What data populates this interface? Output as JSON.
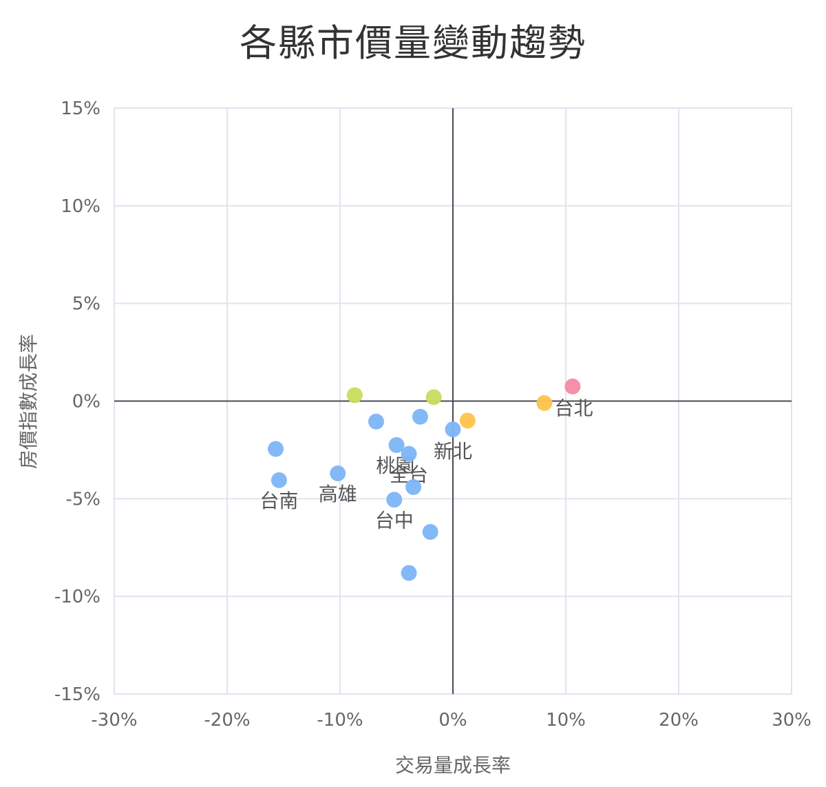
{
  "chart_data": {
    "type": "scatter",
    "title": "各縣市價量變動趨勢",
    "xlabel": "交易量成長率",
    "ylabel": "房價指數成長率",
    "xlim": [
      -30,
      30
    ],
    "ylim": [
      -15,
      15
    ],
    "x_ticks": [
      -30,
      -20,
      -10,
      0,
      10,
      20,
      30
    ],
    "y_ticks": [
      15,
      10,
      5,
      0,
      -5,
      -10,
      -15
    ],
    "x_tick_labels": [
      "-30%",
      "-20%",
      "-10%",
      "0%",
      "10%",
      "20%",
      "30%"
    ],
    "y_tick_labels": [
      "15%",
      "10%",
      "5%",
      "0%",
      "-5%",
      "-10%",
      "-15%"
    ],
    "grid": true,
    "points": [
      {
        "x": 10.6,
        "y": 0.75,
        "color": "#f48aa3"
      },
      {
        "x": 8.1,
        "y": -0.1,
        "color": "#ffc34d"
      },
      {
        "x": 1.3,
        "y": -1.0,
        "color": "#ffc34d"
      },
      {
        "x": -8.7,
        "y": 0.3,
        "color": "#c9dc5e"
      },
      {
        "x": -1.7,
        "y": 0.2,
        "color": "#c9dc5e"
      },
      {
        "x": -6.8,
        "y": -1.05,
        "color": "#7db5f7"
      },
      {
        "x": -2.9,
        "y": -0.8,
        "color": "#7db5f7"
      },
      {
        "x": 0.0,
        "y": -1.45,
        "color": "#7db5f7"
      },
      {
        "x": -5.0,
        "y": -2.25,
        "color": "#7db5f7"
      },
      {
        "x": -3.9,
        "y": -2.7,
        "color": "#7db5f7"
      },
      {
        "x": -15.7,
        "y": -2.45,
        "color": "#7db5f7"
      },
      {
        "x": -15.4,
        "y": -4.05,
        "color": "#7db5f7"
      },
      {
        "x": -10.2,
        "y": -3.7,
        "color": "#7db5f7"
      },
      {
        "x": -3.5,
        "y": -4.4,
        "color": "#7db5f7"
      },
      {
        "x": -5.2,
        "y": -5.05,
        "color": "#7db5f7"
      },
      {
        "x": -2.0,
        "y": -6.7,
        "color": "#7db5f7"
      },
      {
        "x": -3.9,
        "y": -8.8,
        "color": "#7db5f7"
      }
    ],
    "annotations": [
      {
        "text": "台北",
        "x": 10.7,
        "y": -0.7
      },
      {
        "text": "新北",
        "x": 0.0,
        "y": -2.9
      },
      {
        "text": "桃園",
        "x": -5.1,
        "y": -3.65
      },
      {
        "text": "全台",
        "x": -3.9,
        "y": -4.1
      },
      {
        "text": "台南",
        "x": -15.4,
        "y": -5.45
      },
      {
        "text": "高雄",
        "x": -10.2,
        "y": -5.1
      },
      {
        "text": "台中",
        "x": -5.2,
        "y": -6.45
      }
    ],
    "colors": {
      "grid": "#dfe4ee",
      "zero_line": "#4a4a55",
      "tick_text": "#666666",
      "annotation_text": "#555555"
    }
  }
}
